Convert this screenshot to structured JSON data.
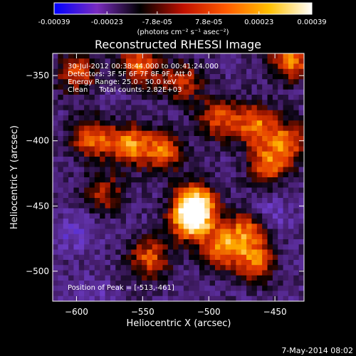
{
  "chart_data": {
    "type": "heatmap",
    "title": "Reconstructed RHESSI Image",
    "xlabel": "Heliocentric X (arcsec)",
    "ylabel": "Heliocentric Y (arcsec)",
    "xlim": [
      -618,
      -428
    ],
    "ylim": [
      -523,
      -333
    ],
    "xticks": [
      -600,
      -550,
      -500,
      -450
    ],
    "yticks": [
      -350,
      -400,
      -450,
      -500
    ],
    "colorbar": {
      "range": [
        -0.00039,
        0.00039
      ],
      "tick_values": [
        -0.00039,
        -0.00023,
        -7.8e-05,
        7.8e-05,
        0.00023,
        0.00039
      ],
      "tick_labels": [
        "-0.00039",
        "-0.00023",
        "-7.8e-05",
        "7.8e-05",
        "0.00023",
        "0.00039"
      ],
      "unit_label": "(photons cm⁻² s⁻¹ asec⁻²)",
      "colors": [
        "#0000ff",
        "#7a2cc0",
        "#000000",
        "#c01000",
        "#ff5a00",
        "#ffc000",
        "#ffffff"
      ]
    },
    "annotations": [
      "30-Jul-2012 00:38:44.000 to 00:41:24.000",
      "Detectors: 3F 5F 6F 7F 8F 9F, Att 0",
      "Energy Range: 25.0 - 50.0 keV",
      "Clean     Total counts: 2.82E+03"
    ],
    "peak_label": "Position of Peak = [-513,-461]",
    "peak": [
      -513,
      -461
    ],
    "grid": false,
    "sources": [
      {
        "x": -513,
        "y": -461,
        "value": 0.00039
      },
      {
        "x": -510,
        "y": -447,
        "value": 0.00031
      },
      {
        "x": -490,
        "y": -482,
        "value": 0.00024
      },
      {
        "x": -470,
        "y": -468,
        "value": 0.00022
      },
      {
        "x": -465,
        "y": -493,
        "value": 0.0002
      },
      {
        "x": -545,
        "y": -490,
        "value": 0.00019
      },
      {
        "x": -588,
        "y": -398,
        "value": 0.00022
      },
      {
        "x": -560,
        "y": -403,
        "value": 0.00024
      },
      {
        "x": -535,
        "y": -408,
        "value": 0.00021
      },
      {
        "x": -493,
        "y": -383,
        "value": 0.00018
      },
      {
        "x": -465,
        "y": -388,
        "value": 0.00023
      },
      {
        "x": -455,
        "y": -418,
        "value": 0.00021
      },
      {
        "x": -440,
        "y": -400,
        "value": 0.00019
      },
      {
        "x": -600,
        "y": -348,
        "value": 0.00018
      },
      {
        "x": -553,
        "y": -343,
        "value": 0.00022
      },
      {
        "x": -438,
        "y": -338,
        "value": 0.00025
      },
      {
        "x": -520,
        "y": -355,
        "value": 0.00014
      },
      {
        "x": -580,
        "y": -440,
        "value": 0.00012
      },
      {
        "x": -600,
        "y": -470,
        "value": -0.00022
      },
      {
        "x": -455,
        "y": -458,
        "value": -0.00024
      },
      {
        "x": -588,
        "y": -520,
        "value": -0.00018
      },
      {
        "x": -570,
        "y": -360,
        "value": -0.00015
      }
    ]
  },
  "footer": {
    "date": "7-May-2014 08:02"
  }
}
